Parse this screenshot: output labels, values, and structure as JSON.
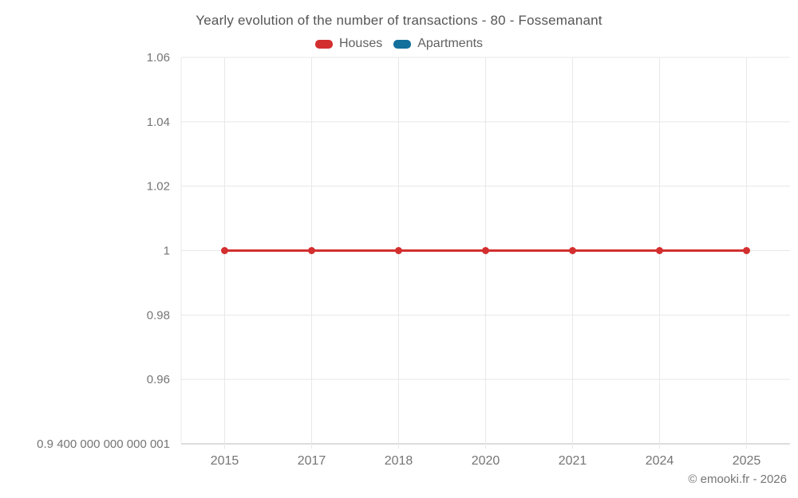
{
  "header": {
    "title": "Yearly evolution of the number of transactions - 80 - Fossemanant"
  },
  "legend": {
    "items": [
      {
        "label": "Houses",
        "color": "#d32f2f"
      },
      {
        "label": "Apartments",
        "color": "#136f9c"
      }
    ]
  },
  "chart_data": {
    "type": "line",
    "title": "Yearly evolution of the number of transactions - 80 - Fossemanant",
    "categories": [
      "2015",
      "2017",
      "2018",
      "2020",
      "2021",
      "2024",
      "2025"
    ],
    "series": [
      {
        "name": "Houses",
        "color": "#d32f2f",
        "values": [
          1,
          1,
          1,
          1,
          1,
          1,
          1
        ]
      },
      {
        "name": "Apartments",
        "color": "#136f9c",
        "values": []
      }
    ],
    "xlabel": "",
    "ylabel": "",
    "ylim": [
      0.94,
      1.06
    ],
    "yticks": [
      {
        "value": 1.06,
        "label": "1.06"
      },
      {
        "value": 1.04,
        "label": "1.04"
      },
      {
        "value": 1.02,
        "label": "1.02"
      },
      {
        "value": 1.0,
        "label": "1"
      },
      {
        "value": 0.98,
        "label": "0.98"
      },
      {
        "value": 0.96,
        "label": "0.96"
      },
      {
        "value": 0.94,
        "label": "0.9 400 000 000 000 001"
      }
    ],
    "grid": true,
    "legend_position": "top"
  },
  "footer": {
    "copyright": "© emooki.fr - 2026"
  }
}
